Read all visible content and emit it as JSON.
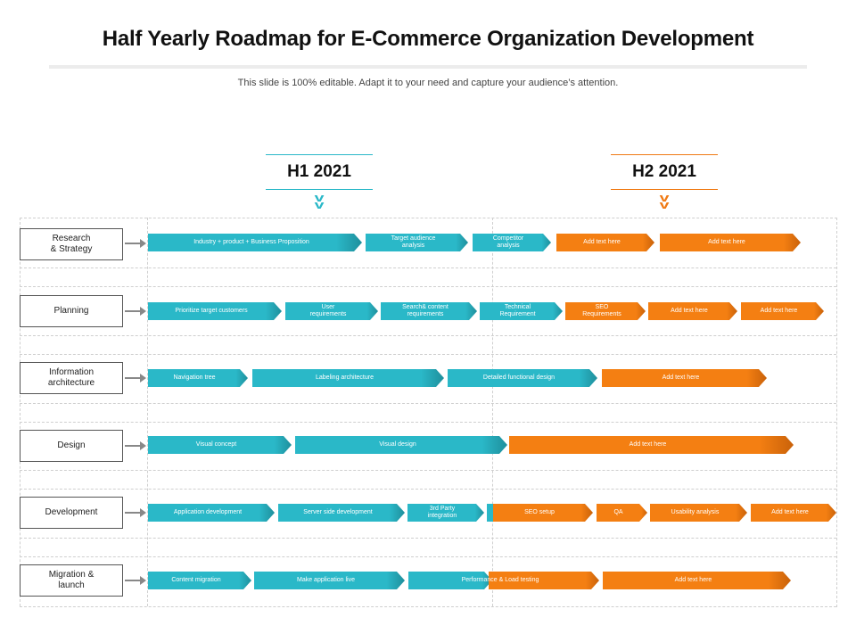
{
  "title": "Half Yearly Roadmap for E-Commerce Organization Development",
  "subtitle": "This slide is 100% editable. Adapt it to your need and capture your audience’s attention.",
  "periods": [
    {
      "label": "H1 2021",
      "color": "#2ab8c8"
    },
    {
      "label": "H2 2021",
      "color": "#f07a14"
    }
  ],
  "colors": {
    "teal": "#2ab8c8",
    "orange": "#f47f12"
  },
  "rows": [
    {
      "label": "Research\n& Strategy"
    },
    {
      "label": "Planning"
    },
    {
      "label": "Information\narchitecture"
    },
    {
      "label": "Design"
    },
    {
      "label": "Development"
    },
    {
      "label": "Migration &\nlaunch"
    }
  ],
  "tasks": {
    "r0": [
      "Industry + product + Business Proposition",
      "Target audience\nanalysis",
      "Competitor\nanalysis",
      "Add text here",
      "Add text here"
    ],
    "r1": [
      "Prioritize target customers",
      "User\nrequirements",
      "Search& content\nrequirements",
      "Technical\nRequirement",
      "SEO\nRequirements",
      "Add text here",
      "Add text here"
    ],
    "r2": [
      "Navigation tree",
      "Labeling architecture",
      "Detailed functional design",
      "Add text here"
    ],
    "r3": [
      "Visual concept",
      "Visual design",
      "",
      "Add text here"
    ],
    "r4": [
      "Application development",
      "Server side development",
      "3rd Party\nintegration",
      "SEO setup",
      "QA",
      "Usability analysis",
      "Add text here"
    ],
    "r5": [
      "Content migration",
      "Make application live",
      "Performance & Load testing",
      "Add text here"
    ]
  }
}
